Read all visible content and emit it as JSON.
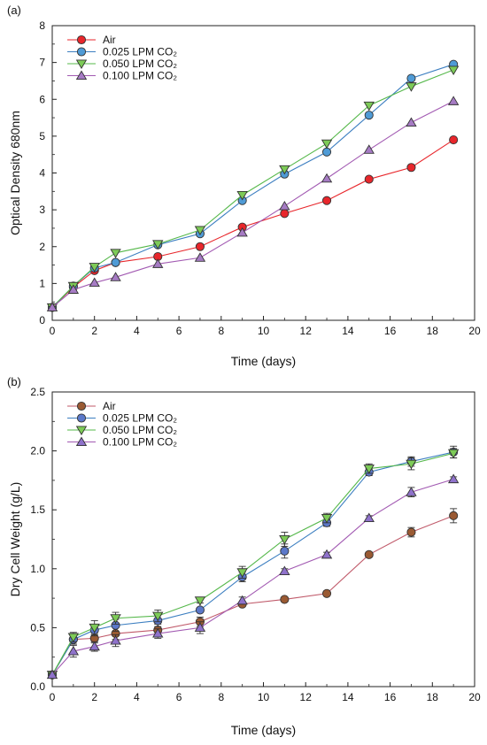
{
  "chart_data": [
    {
      "panel_label": "(a)",
      "type": "line",
      "xlabel": "Time (days)",
      "ylabel": "Optical Density 680nm",
      "xlim": [
        0,
        20
      ],
      "ylim": [
        0,
        8
      ],
      "xticks": [
        "0",
        "2",
        "4",
        "6",
        "8",
        "10",
        "12",
        "14",
        "16",
        "18",
        "20"
      ],
      "yticks": [
        "0",
        "1",
        "2",
        "3",
        "4",
        "5",
        "6",
        "7",
        "8"
      ],
      "grid": false,
      "legend_position": "top-left",
      "x": [
        0,
        1,
        2,
        3,
        5,
        7,
        9,
        11,
        13,
        15,
        17,
        19
      ],
      "series": [
        {
          "name": "Air",
          "marker": "circle",
          "color": "#e8262b",
          "marker_color": "#e8262b",
          "values": [
            0.35,
            0.9,
            1.35,
            1.57,
            1.73,
            2.0,
            2.53,
            2.9,
            3.25,
            3.83,
            4.15,
            4.9
          ]
        },
        {
          "name": "0.025 LPM CO₂",
          "marker": "circle",
          "color": "#3d7fc1",
          "marker_color": "#4f9bd6",
          "values": [
            0.35,
            0.93,
            1.42,
            1.57,
            2.05,
            2.35,
            3.25,
            3.97,
            4.57,
            5.57,
            6.57,
            6.95
          ]
        },
        {
          "name": "0.050 LPM CO₂",
          "marker": "triangle-down",
          "color": "#55b84a",
          "marker_color": "#7dcb57",
          "values": [
            0.35,
            0.93,
            1.45,
            1.83,
            2.07,
            2.45,
            3.4,
            4.1,
            4.8,
            5.83,
            6.35,
            6.8
          ]
        },
        {
          "name": "0.100 LPM CO₂",
          "marker": "triangle-up",
          "color": "#a25ab2",
          "marker_color": "#a67bc4",
          "values": [
            0.35,
            0.83,
            1.02,
            1.17,
            1.53,
            1.7,
            2.38,
            3.1,
            3.85,
            4.63,
            5.37,
            5.95
          ]
        }
      ]
    },
    {
      "panel_label": "(b)",
      "type": "line",
      "xlabel": "Time (days)",
      "ylabel": "Dry Cell Weight (g/L)",
      "xlim": [
        0,
        20
      ],
      "ylim": [
        0,
        2.5
      ],
      "xticks": [
        "0",
        "2",
        "4",
        "6",
        "8",
        "10",
        "12",
        "14",
        "16",
        "18",
        "20"
      ],
      "yticks": [
        "0.0",
        "0.5",
        "1.0",
        "1.5",
        "2.0",
        "2.5"
      ],
      "grid": false,
      "legend_position": "top-left",
      "x": [
        0,
        1,
        2,
        3,
        5,
        7,
        9,
        11,
        13,
        15,
        17,
        19
      ],
      "series": [
        {
          "name": "Air",
          "marker": "circle",
          "color": "#c05a6a",
          "marker_color": "#9a5a33",
          "values": [
            0.1,
            0.4,
            0.41,
            0.45,
            0.48,
            0.55,
            0.7,
            0.74,
            0.79,
            1.12,
            1.31,
            1.45
          ],
          "errors": [
            0.02,
            0.04,
            0.04,
            0.05,
            0.05,
            0.04,
            0.02,
            0.02,
            0.02,
            0.02,
            0.04,
            0.06
          ]
        },
        {
          "name": "0.025 LPM CO₂",
          "marker": "circle",
          "color": "#3d7fc1",
          "marker_color": "#5b78c9",
          "values": [
            0.1,
            0.4,
            0.48,
            0.52,
            0.56,
            0.65,
            0.93,
            1.15,
            1.39,
            1.82,
            1.91,
            1.99
          ],
          "errors": [
            0.02,
            0.04,
            0.05,
            0.05,
            0.05,
            0.02,
            0.04,
            0.06,
            0.03,
            0.03,
            0.04,
            0.05
          ]
        },
        {
          "name": "0.050 LPM CO₂",
          "marker": "triangle-down",
          "color": "#55b84a",
          "marker_color": "#7dcb57",
          "values": [
            0.1,
            0.42,
            0.5,
            0.58,
            0.6,
            0.73,
            0.97,
            1.25,
            1.43,
            1.85,
            1.89,
            1.98
          ],
          "errors": [
            0.02,
            0.04,
            0.06,
            0.05,
            0.05,
            0.02,
            0.05,
            0.06,
            0.04,
            0.04,
            0.05,
            0.04
          ]
        },
        {
          "name": "0.100 LPM CO₂",
          "marker": "triangle-up",
          "color": "#a25ab2",
          "marker_color": "#8f72cb",
          "values": [
            0.1,
            0.3,
            0.34,
            0.39,
            0.45,
            0.5,
            0.73,
            0.98,
            1.12,
            1.43,
            1.65,
            1.76
          ],
          "errors": [
            0.02,
            0.05,
            0.04,
            0.05,
            0.04,
            0.05,
            0.03,
            0.02,
            0.02,
            0.02,
            0.04,
            0.02
          ]
        }
      ]
    }
  ]
}
